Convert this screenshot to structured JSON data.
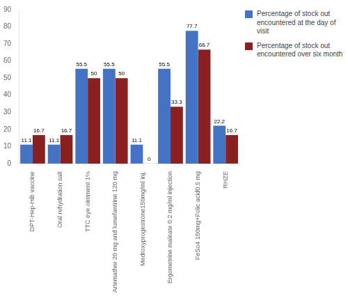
{
  "chart_data": {
    "type": "bar",
    "categories": [
      "DPT-Hep-Hib vaccine",
      "Oral rehydration salt",
      "TTC eye ointment 1%",
      "Artemather 20 mg and lumefantrine 120 mg",
      "Medroxyprogestrone150mg/ml inj.",
      "Ergometrine maleate 0.2 mg/ml injection",
      "FeSo4 150mg+Folic acid0.5 mg",
      "RHZE"
    ],
    "series": [
      {
        "name": "Percentage of stock out\nencountered at the day of\nvisit",
        "color": "#4472C4",
        "values": [
          11.1,
          11.1,
          55.5,
          55.5,
          11.1,
          55.5,
          77.7,
          22.2
        ]
      },
      {
        "name": "Percentage of stock out\nencountered over six month",
        "color": "#8B2020",
        "values": [
          16.7,
          16.7,
          50.0,
          50.0,
          0.0,
          33.3,
          66.7,
          16.7
        ]
      }
    ],
    "ylim": [
      0,
      90
    ],
    "yticks": [
      0,
      10,
      20,
      30,
      40,
      50,
      60,
      70,
      80,
      90
    ],
    "grid": false,
    "legend": "upper right",
    "data_labels": true
  }
}
